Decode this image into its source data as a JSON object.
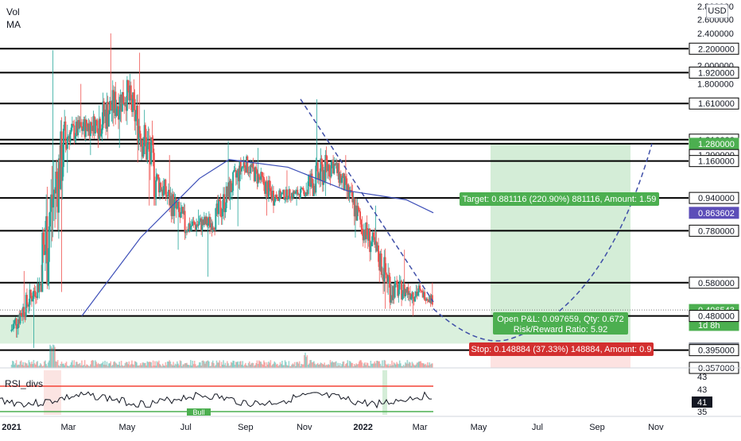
{
  "indicators": {
    "volume": "Vol",
    "ma": "MA",
    "rsi": "RSI_divs",
    "rsi_badge": "Bull"
  },
  "currency": "USD",
  "price_axis": {
    "ticks": [
      "2.800000",
      "2.600000",
      "2.400000",
      "2.000000",
      "1.800000"
    ],
    "tick_values": [
      2.8,
      2.6,
      2.4,
      2.0,
      1.8
    ],
    "level_tags": [
      {
        "text": "2.200000",
        "value": 2.2,
        "style": "white"
      },
      {
        "text": "1.920000",
        "value": 1.92,
        "style": "white"
      },
      {
        "text": "1.610000",
        "value": 1.61,
        "style": "white"
      },
      {
        "text": "1.310000",
        "value": 1.31,
        "style": "white"
      },
      {
        "text": "1.280000",
        "value": 1.28,
        "style": "green"
      },
      {
        "text": "1.200000",
        "value": 1.2,
        "style": "white"
      },
      {
        "text": "1.160000",
        "value": 1.16,
        "style": "white"
      },
      {
        "text": "0.940000",
        "value": 0.94,
        "style": "white"
      },
      {
        "text": "0.863602",
        "value": 0.863602,
        "style": "purple"
      },
      {
        "text": "0.780000",
        "value": 0.78,
        "style": "white"
      },
      {
        "text": "0.580000",
        "value": 0.58,
        "style": "white"
      },
      {
        "text": "0.496543",
        "value": 0.496543,
        "style": "green"
      },
      {
        "text": "1d 8h",
        "value": 0.456,
        "style": "green"
      },
      {
        "text": "0.480000",
        "value": 0.48,
        "style": "white"
      },
      {
        "text": "0.398884",
        "value": 0.398884,
        "style": "grey"
      },
      {
        "text": "0.395000",
        "value": 0.395,
        "style": "white"
      },
      {
        "text": "0.357000",
        "value": 0.357,
        "style": "white"
      }
    ]
  },
  "rsi_axis": {
    "ticks": [
      "43",
      "43",
      "41",
      "35"
    ],
    "current": "41"
  },
  "time_axis": [
    "2021",
    "Mar",
    "May",
    "Jul",
    "Sep",
    "Nov",
    "2022",
    "Mar",
    "May",
    "Jul",
    "Sep",
    "Nov"
  ],
  "position": {
    "target_label": "Target: 0.881116 (220.90%) 881116, Amount: 1.59",
    "open_label_line1": "Open P&L: 0.097659, Qty: 0.672",
    "open_label_line2": "Risk/Reward Ratio: 5.92",
    "stop_label": "Stop: 0.148884 (37.33%) 148884, Amount: 0.9",
    "entry": 0.398884,
    "target": 1.28,
    "stop": 0.25
  },
  "colors": {
    "bull": "#26a69a",
    "bear": "#ef5350",
    "ma": "#3d4fb8",
    "target_zone": "#d4edd7",
    "target_tag": "#4caf50",
    "stop_tag": "#d32f2f",
    "projection": "#3f4fa8",
    "rsi_upper": "#f44336",
    "rsi_lower": "#4caf50",
    "purple_tag": "#5c4db8"
  },
  "chart_data": {
    "type": "candlestick",
    "title": "",
    "ylabel": "",
    "xlabel": "",
    "scale": "log",
    "ylim": [
      0.357,
      2.8
    ],
    "x_range": [
      "2020-12-20",
      "2022-11-30"
    ],
    "ohlc_monthly": [
      {
        "date": "2021-01",
        "open": 0.44,
        "high": 0.62,
        "low": 0.4,
        "close": 0.58
      },
      {
        "date": "2021-02",
        "open": 0.58,
        "high": 2.18,
        "low": 0.55,
        "close": 1.35
      },
      {
        "date": "2021-03",
        "open": 1.35,
        "high": 1.8,
        "low": 1.2,
        "close": 1.45
      },
      {
        "date": "2021-04",
        "open": 1.45,
        "high": 2.4,
        "low": 1.25,
        "close": 1.7
      },
      {
        "date": "2021-05",
        "open": 1.7,
        "high": 2.15,
        "low": 0.9,
        "close": 1.05
      },
      {
        "date": "2021-06",
        "open": 1.05,
        "high": 1.2,
        "low": 0.7,
        "close": 0.8
      },
      {
        "date": "2021-07",
        "open": 0.8,
        "high": 0.88,
        "low": 0.6,
        "close": 0.82
      },
      {
        "date": "2021-08",
        "open": 0.82,
        "high": 1.3,
        "low": 0.8,
        "close": 1.15
      },
      {
        "date": "2021-09",
        "open": 1.15,
        "high": 1.25,
        "low": 0.85,
        "close": 0.95
      },
      {
        "date": "2021-10",
        "open": 0.95,
        "high": 1.1,
        "low": 0.9,
        "close": 0.97
      },
      {
        "date": "2021-11",
        "open": 0.97,
        "high": 1.65,
        "low": 0.95,
        "close": 1.15
      },
      {
        "date": "2021-12",
        "open": 1.15,
        "high": 1.2,
        "low": 0.75,
        "close": 0.8
      },
      {
        "date": "2022-01",
        "open": 0.8,
        "high": 0.9,
        "low": 0.5,
        "close": 0.56
      },
      {
        "date": "2022-02",
        "open": 0.56,
        "high": 0.7,
        "low": 0.48,
        "close": 0.55
      },
      {
        "date": "2022-03",
        "open": 0.55,
        "high": 0.58,
        "low": 0.48,
        "close": 0.496543
      }
    ],
    "horizontal_levels": [
      2.2,
      1.92,
      1.61,
      1.31,
      1.28,
      1.16,
      0.94,
      0.78,
      0.58,
      0.48,
      0.395
    ],
    "moving_average": [
      {
        "date": "2021-03",
        "value": 0.48
      },
      {
        "date": "2021-05",
        "value": 0.75
      },
      {
        "date": "2021-07",
        "value": 1.05
      },
      {
        "date": "2021-08",
        "value": 1.17
      },
      {
        "date": "2021-10",
        "value": 1.12
      },
      {
        "date": "2021-12",
        "value": 0.98
      },
      {
        "date": "2022-02",
        "value": 0.93
      },
      {
        "date": "2022-03",
        "value": 0.863602
      }
    ]
  }
}
